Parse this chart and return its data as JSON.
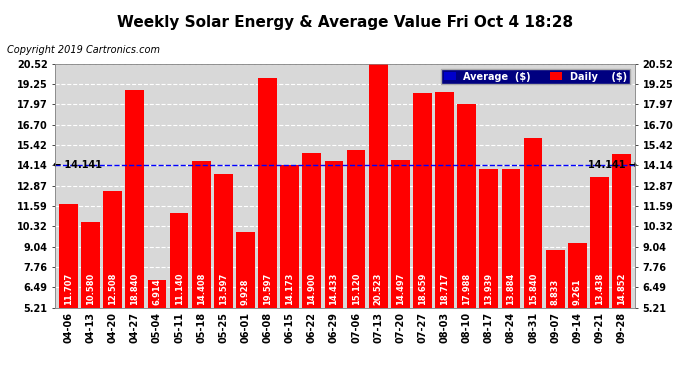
{
  "title": "Weekly Solar Energy & Average Value Fri Oct 4 18:28",
  "copyright": "Copyright 2019 Cartronics.com",
  "categories": [
    "04-06",
    "04-13",
    "04-20",
    "04-27",
    "05-04",
    "05-11",
    "05-18",
    "05-25",
    "06-01",
    "06-08",
    "06-15",
    "06-22",
    "06-29",
    "07-06",
    "07-13",
    "07-20",
    "07-27",
    "08-03",
    "08-10",
    "08-17",
    "08-24",
    "08-31",
    "09-07",
    "09-14",
    "09-21",
    "09-28"
  ],
  "values": [
    11.707,
    10.58,
    12.508,
    18.84,
    6.914,
    11.14,
    14.408,
    13.597,
    9.928,
    19.597,
    14.173,
    14.9,
    14.433,
    15.12,
    20.523,
    14.497,
    18.659,
    18.717,
    17.988,
    13.939,
    13.884,
    15.84,
    8.833,
    9.261,
    13.438,
    14.852
  ],
  "average": 14.141,
  "bar_color": "#ff0000",
  "average_color": "#0000ff",
  "background_color": "#ffffff",
  "plot_background": "#d8d8d8",
  "grid_color": "#ffffff",
  "yticks": [
    5.21,
    6.49,
    7.76,
    9.04,
    10.32,
    11.59,
    12.87,
    14.14,
    15.42,
    16.7,
    17.97,
    19.25,
    20.52
  ],
  "ylim_min": 5.21,
  "ylim_max": 20.52,
  "average_value": 14.141,
  "legend_avg_color": "#0000cc",
  "legend_daily_color": "#ff0000",
  "font_color": "#000000",
  "title_fontsize": 11,
  "tick_fontsize": 7,
  "bar_label_fontsize": 6,
  "avg_label_fontsize": 7,
  "copyright_fontsize": 7
}
